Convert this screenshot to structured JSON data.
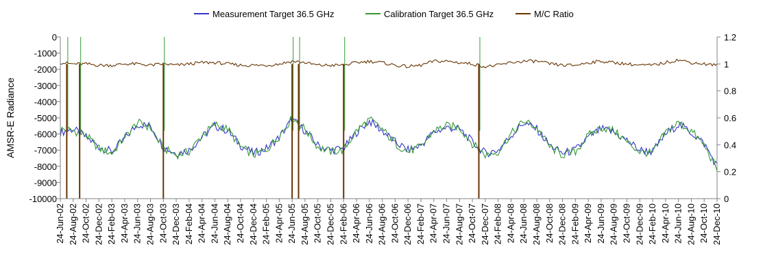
{
  "chart_data": {
    "type": "line",
    "title": "",
    "xlabel": "",
    "ylabel": "AMSR-E Radiance",
    "y_left": {
      "range": [
        -10000,
        0
      ],
      "ticks": [
        0,
        -1000,
        -2000,
        -3000,
        -4000,
        -5000,
        -6000,
        -7000,
        -8000,
        -9000,
        -10000
      ]
    },
    "y_right": {
      "range": [
        0,
        1.2
      ],
      "ticks": [
        0,
        0.2,
        0.4,
        0.6,
        0.8,
        1,
        1.2
      ]
    },
    "grid": false,
    "legend_position": "top",
    "x_tick_labels": [
      "24-Jun-02",
      "24-Aug-02",
      "24-Oct-02",
      "24-Dec-02",
      "24-Feb-03",
      "24-Apr-03",
      "24-Jun-03",
      "24-Aug-03",
      "24-Oct-03",
      "24-Dec-03",
      "24-Feb-04",
      "24-Apr-04",
      "24-Jun-04",
      "24-Aug-04",
      "24-Oct-04",
      "24-Dec-04",
      "24-Feb-05",
      "24-Apr-05",
      "24-Jun-05",
      "24-Aug-05",
      "24-Oct-05",
      "24-Dec-05",
      "24-Feb-06",
      "24-Apr-06",
      "24-Jun-06",
      "24-Aug-06",
      "24-Oct-06",
      "24-Dec-06",
      "24-Feb-07",
      "24-Apr-07",
      "24-Jun-07",
      "24-Aug-07",
      "24-Oct-07",
      "24-Dec-07",
      "24-Feb-08",
      "24-Apr-08",
      "24-Jun-08",
      "24-Aug-08",
      "24-Oct-08",
      "24-Dec-08",
      "24-Feb-09",
      "24-Apr-09",
      "24-Jun-09",
      "24-Aug-09",
      "24-Oct-09",
      "24-Dec-09",
      "24-Feb-10",
      "24-Apr-10",
      "24-Jun-10",
      "24-Aug-10",
      "24-Oct-10",
      "24-Dec-10"
    ],
    "series": [
      {
        "name": "Measurement Target 36.5 GHz",
        "color": "#3333cc",
        "axis": "left",
        "x": [
          "24-Jun-02",
          "24-Aug-02",
          "24-Oct-02",
          "24-Dec-02",
          "24-Feb-03",
          "24-Apr-03",
          "24-Jun-03",
          "24-Aug-03",
          "24-Oct-03",
          "24-Dec-03",
          "24-Feb-04",
          "24-Apr-04",
          "24-Jun-04",
          "24-Aug-04",
          "24-Oct-04",
          "24-Dec-04",
          "24-Feb-05",
          "24-Apr-05",
          "24-Jun-05",
          "24-Aug-05",
          "24-Oct-05",
          "24-Dec-05",
          "24-Feb-06",
          "24-Apr-06",
          "24-Jun-06",
          "24-Aug-06",
          "24-Oct-06",
          "24-Dec-06",
          "24-Feb-07",
          "24-Apr-07",
          "24-Jun-07",
          "24-Aug-07",
          "24-Oct-07",
          "24-Dec-07",
          "24-Feb-08",
          "24-Apr-08",
          "24-Jun-08",
          "24-Aug-08",
          "24-Oct-08",
          "24-Dec-08",
          "24-Feb-09",
          "24-Apr-09",
          "24-Jun-09",
          "24-Aug-09",
          "24-Oct-09",
          "24-Dec-09",
          "24-Feb-10",
          "24-Apr-10",
          "24-Jun-10",
          "24-Aug-10",
          "24-Oct-10",
          "24-Dec-10"
        ],
        "y": [
          -5900,
          -5700,
          -6200,
          -6800,
          -7100,
          -6300,
          -5400,
          -5500,
          -6800,
          -7200,
          -7000,
          -6200,
          -5500,
          -5800,
          -6700,
          -7200,
          -6900,
          -6200,
          -5100,
          -5800,
          -6700,
          -7000,
          -6900,
          -5900,
          -5200,
          -5800,
          -6500,
          -7000,
          -6700,
          -5900,
          -5600,
          -5700,
          -6500,
          -7200,
          -7000,
          -6100,
          -5300,
          -5700,
          -6700,
          -7200,
          -7000,
          -6200,
          -5700,
          -5900,
          -6400,
          -7000,
          -7100,
          -6000,
          -5400,
          -5900,
          -6600,
          -8000
        ]
      },
      {
        "name": "Calibration Target 36.5 GHz",
        "color": "#339933",
        "axis": "left",
        "x": [
          "24-Jun-02",
          "24-Aug-02",
          "24-Oct-02",
          "24-Dec-02",
          "24-Feb-03",
          "24-Apr-03",
          "24-Jun-03",
          "24-Aug-03",
          "24-Oct-03",
          "24-Dec-03",
          "24-Feb-04",
          "24-Apr-04",
          "24-Jun-04",
          "24-Aug-04",
          "24-Oct-04",
          "24-Dec-04",
          "24-Feb-05",
          "24-Apr-05",
          "24-Jun-05",
          "24-Aug-05",
          "24-Oct-05",
          "24-Dec-05",
          "24-Feb-06",
          "24-Apr-06",
          "24-Jun-06",
          "24-Aug-06",
          "24-Oct-06",
          "24-Dec-06",
          "24-Feb-07",
          "24-Apr-07",
          "24-Jun-07",
          "24-Aug-07",
          "24-Oct-07",
          "24-Dec-07",
          "24-Feb-08",
          "24-Apr-08",
          "24-Jun-08",
          "24-Aug-08",
          "24-Oct-08",
          "24-Dec-08",
          "24-Feb-09",
          "24-Apr-09",
          "24-Jun-09",
          "24-Aug-09",
          "24-Oct-09",
          "24-Dec-09",
          "24-Feb-10",
          "24-Apr-10",
          "24-Jun-10",
          "24-Aug-10",
          "24-Oct-10",
          "24-Dec-10"
        ],
        "y": [
          -5700,
          -5800,
          -6100,
          -6900,
          -7200,
          -6200,
          -5300,
          -5600,
          -6900,
          -7300,
          -7100,
          -6100,
          -5400,
          -5700,
          -6800,
          -7300,
          -7000,
          -6100,
          -5000,
          -5700,
          -6800,
          -7100,
          -7000,
          -5800,
          -5100,
          -5700,
          -6600,
          -7100,
          -6800,
          -5800,
          -5500,
          -5600,
          -6600,
          -7300,
          -7100,
          -6000,
          -5200,
          -5600,
          -6800,
          -7300,
          -7100,
          -6100,
          -5600,
          -5800,
          -6500,
          -7100,
          -7200,
          -5900,
          -5300,
          -5800,
          -6700,
          -8200
        ]
      },
      {
        "name": "M/C Ratio",
        "color": "#663300",
        "axis": "right",
        "x": [
          "24-Jun-02",
          "24-Aug-02",
          "24-Oct-02",
          "24-Dec-02",
          "24-Feb-03",
          "24-Apr-03",
          "24-Jun-03",
          "24-Aug-03",
          "24-Oct-03",
          "24-Dec-03",
          "24-Feb-04",
          "24-Apr-04",
          "24-Jun-04",
          "24-Aug-04",
          "24-Oct-04",
          "24-Dec-04",
          "24-Feb-05",
          "24-Apr-05",
          "24-Jun-05",
          "24-Aug-05",
          "24-Oct-05",
          "24-Dec-05",
          "24-Feb-06",
          "24-Apr-06",
          "24-Jun-06",
          "24-Aug-06",
          "24-Oct-06",
          "24-Dec-06",
          "24-Feb-07",
          "24-Apr-07",
          "24-Jun-07",
          "24-Aug-07",
          "24-Oct-07",
          "24-Dec-07",
          "24-Feb-08",
          "24-Apr-08",
          "24-Jun-08",
          "24-Aug-08",
          "24-Oct-08",
          "24-Dec-08",
          "24-Feb-09",
          "24-Apr-09",
          "24-Jun-09",
          "24-Aug-09",
          "24-Oct-09",
          "24-Dec-09",
          "24-Feb-10",
          "24-Apr-10",
          "24-Jun-10",
          "24-Aug-10",
          "24-Oct-10",
          "24-Dec-10"
        ],
        "y": [
          1.01,
          1.0,
          1.0,
          0.99,
          0.99,
          1.0,
          1.0,
          0.99,
          1.0,
          0.99,
          1.0,
          1.01,
          1.01,
          1.0,
          0.99,
          0.99,
          0.99,
          1.0,
          1.02,
          1.01,
          0.99,
          0.99,
          0.99,
          1.01,
          1.02,
          1.01,
          0.99,
          0.98,
          0.99,
          1.02,
          1.02,
          1.01,
          1.0,
          0.98,
          0.99,
          1.01,
          1.02,
          1.02,
          1.0,
          0.99,
          0.99,
          1.01,
          1.02,
          1.01,
          1.0,
          0.99,
          0.99,
          1.01,
          1.03,
          1.01,
          1.0,
          0.99
        ]
      }
    ],
    "ratio_dropouts": [
      "24-Jul-02",
      "24-Sep-02",
      "24-Oct-03",
      "24-Jun-05",
      "24-Jul-05",
      "24-Feb-06",
      "24-Nov-07"
    ]
  }
}
